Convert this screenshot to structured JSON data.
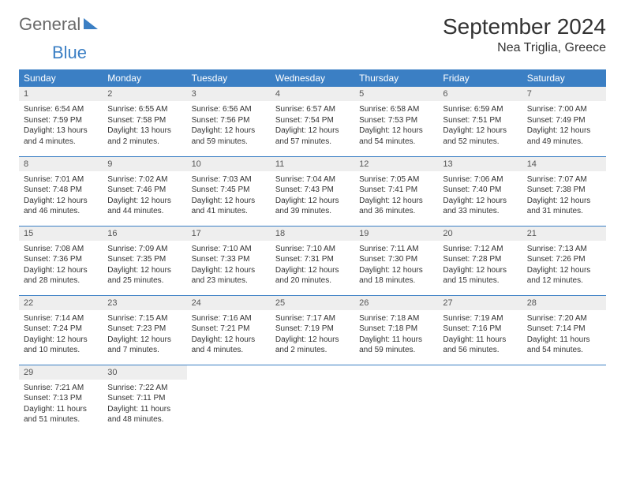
{
  "brand": {
    "part1": "General",
    "part2": "Blue"
  },
  "title": "September 2024",
  "location": "Nea Triglia, Greece",
  "colors": {
    "accent": "#3b7fc4",
    "header_text": "#ffffff",
    "daynum_bg": "#eeeeee"
  },
  "weekdays": [
    "Sunday",
    "Monday",
    "Tuesday",
    "Wednesday",
    "Thursday",
    "Friday",
    "Saturday"
  ],
  "weeks": [
    [
      {
        "n": "1",
        "sr": "6:54 AM",
        "ss": "7:59 PM",
        "dl": "13 hours and 4 minutes."
      },
      {
        "n": "2",
        "sr": "6:55 AM",
        "ss": "7:58 PM",
        "dl": "13 hours and 2 minutes."
      },
      {
        "n": "3",
        "sr": "6:56 AM",
        "ss": "7:56 PM",
        "dl": "12 hours and 59 minutes."
      },
      {
        "n": "4",
        "sr": "6:57 AM",
        "ss": "7:54 PM",
        "dl": "12 hours and 57 minutes."
      },
      {
        "n": "5",
        "sr": "6:58 AM",
        "ss": "7:53 PM",
        "dl": "12 hours and 54 minutes."
      },
      {
        "n": "6",
        "sr": "6:59 AM",
        "ss": "7:51 PM",
        "dl": "12 hours and 52 minutes."
      },
      {
        "n": "7",
        "sr": "7:00 AM",
        "ss": "7:49 PM",
        "dl": "12 hours and 49 minutes."
      }
    ],
    [
      {
        "n": "8",
        "sr": "7:01 AM",
        "ss": "7:48 PM",
        "dl": "12 hours and 46 minutes."
      },
      {
        "n": "9",
        "sr": "7:02 AM",
        "ss": "7:46 PM",
        "dl": "12 hours and 44 minutes."
      },
      {
        "n": "10",
        "sr": "7:03 AM",
        "ss": "7:45 PM",
        "dl": "12 hours and 41 minutes."
      },
      {
        "n": "11",
        "sr": "7:04 AM",
        "ss": "7:43 PM",
        "dl": "12 hours and 39 minutes."
      },
      {
        "n": "12",
        "sr": "7:05 AM",
        "ss": "7:41 PM",
        "dl": "12 hours and 36 minutes."
      },
      {
        "n": "13",
        "sr": "7:06 AM",
        "ss": "7:40 PM",
        "dl": "12 hours and 33 minutes."
      },
      {
        "n": "14",
        "sr": "7:07 AM",
        "ss": "7:38 PM",
        "dl": "12 hours and 31 minutes."
      }
    ],
    [
      {
        "n": "15",
        "sr": "7:08 AM",
        "ss": "7:36 PM",
        "dl": "12 hours and 28 minutes."
      },
      {
        "n": "16",
        "sr": "7:09 AM",
        "ss": "7:35 PM",
        "dl": "12 hours and 25 minutes."
      },
      {
        "n": "17",
        "sr": "7:10 AM",
        "ss": "7:33 PM",
        "dl": "12 hours and 23 minutes."
      },
      {
        "n": "18",
        "sr": "7:10 AM",
        "ss": "7:31 PM",
        "dl": "12 hours and 20 minutes."
      },
      {
        "n": "19",
        "sr": "7:11 AM",
        "ss": "7:30 PM",
        "dl": "12 hours and 18 minutes."
      },
      {
        "n": "20",
        "sr": "7:12 AM",
        "ss": "7:28 PM",
        "dl": "12 hours and 15 minutes."
      },
      {
        "n": "21",
        "sr": "7:13 AM",
        "ss": "7:26 PM",
        "dl": "12 hours and 12 minutes."
      }
    ],
    [
      {
        "n": "22",
        "sr": "7:14 AM",
        "ss": "7:24 PM",
        "dl": "12 hours and 10 minutes."
      },
      {
        "n": "23",
        "sr": "7:15 AM",
        "ss": "7:23 PM",
        "dl": "12 hours and 7 minutes."
      },
      {
        "n": "24",
        "sr": "7:16 AM",
        "ss": "7:21 PM",
        "dl": "12 hours and 4 minutes."
      },
      {
        "n": "25",
        "sr": "7:17 AM",
        "ss": "7:19 PM",
        "dl": "12 hours and 2 minutes."
      },
      {
        "n": "26",
        "sr": "7:18 AM",
        "ss": "7:18 PM",
        "dl": "11 hours and 59 minutes."
      },
      {
        "n": "27",
        "sr": "7:19 AM",
        "ss": "7:16 PM",
        "dl": "11 hours and 56 minutes."
      },
      {
        "n": "28",
        "sr": "7:20 AM",
        "ss": "7:14 PM",
        "dl": "11 hours and 54 minutes."
      }
    ],
    [
      {
        "n": "29",
        "sr": "7:21 AM",
        "ss": "7:13 PM",
        "dl": "11 hours and 51 minutes."
      },
      {
        "n": "30",
        "sr": "7:22 AM",
        "ss": "7:11 PM",
        "dl": "11 hours and 48 minutes."
      },
      null,
      null,
      null,
      null,
      null
    ]
  ],
  "labels": {
    "sunrise": "Sunrise:",
    "sunset": "Sunset:",
    "daylight": "Daylight:"
  }
}
